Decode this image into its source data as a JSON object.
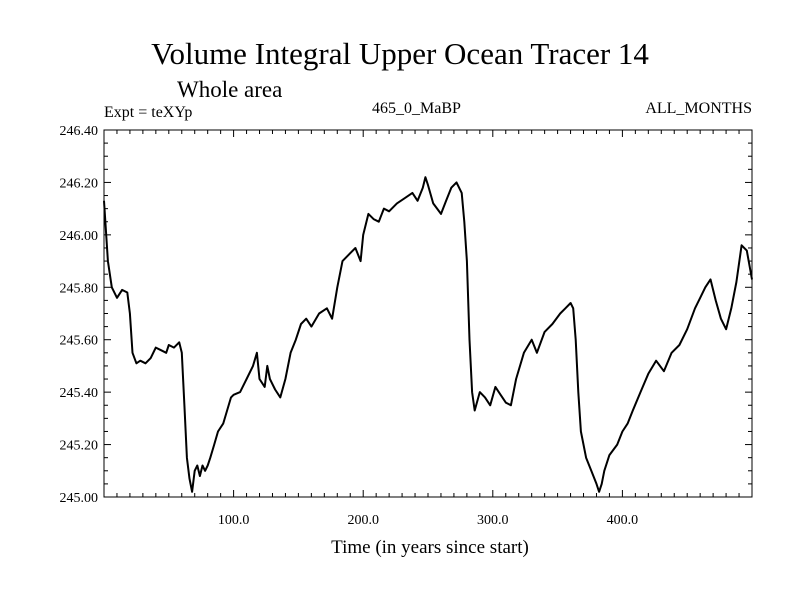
{
  "chart_data": {
    "type": "line",
    "title": "Volume Integral Upper Ocean Tracer 14",
    "subtitle": "Whole area",
    "annotations": {
      "expt": "Expt = teXYp",
      "run": "465_0_MaBP",
      "months": "ALL_MONTHS"
    },
    "xlabel": "Time (in years since start)",
    "ylabel": "",
    "xlim": [
      0,
      500
    ],
    "ylim": [
      245.0,
      246.4
    ],
    "x_ticks": [
      100,
      200,
      300,
      400
    ],
    "x_tick_labels": [
      "100.0",
      "200.0",
      "300.0",
      "400.0"
    ],
    "y_ticks": [
      245.0,
      245.2,
      245.4,
      245.6,
      245.8,
      246.0,
      246.2,
      246.4
    ],
    "y_tick_labels": [
      "245.00",
      "245.20",
      "245.40",
      "245.60",
      "245.80",
      "246.00",
      "246.20",
      "246.40"
    ],
    "grid": false,
    "series": [
      {
        "x": [
          0,
          3,
          6,
          10,
          14,
          18,
          20,
          22,
          25,
          28,
          32,
          36,
          40,
          44,
          48,
          50,
          54,
          58,
          60,
          62,
          64,
          66,
          68,
          70,
          72,
          74,
          76,
          78,
          80,
          82,
          85,
          88,
          92,
          95,
          98,
          100,
          105,
          110,
          115,
          118,
          120,
          124,
          126,
          128,
          132,
          136,
          140,
          144,
          148,
          152,
          156,
          160,
          166,
          172,
          176,
          180,
          184,
          190,
          194,
          198,
          200,
          204,
          208,
          212,
          216,
          220,
          226,
          232,
          238,
          242,
          246,
          248,
          250,
          254,
          260,
          264,
          268,
          272,
          276,
          278,
          280,
          282,
          284,
          286,
          290,
          294,
          298,
          302,
          306,
          310,
          314,
          318,
          324,
          330,
          334,
          340,
          346,
          352,
          356,
          360,
          362,
          364,
          366,
          368,
          372,
          376,
          380,
          382,
          384,
          386,
          390,
          396,
          400,
          404,
          408,
          414,
          420,
          426,
          432,
          438,
          444,
          450,
          456,
          460,
          464,
          468,
          472,
          476,
          480,
          484,
          488,
          492,
          496,
          500
        ],
        "values": [
          246.13,
          245.9,
          245.8,
          245.76,
          245.79,
          245.78,
          245.7,
          245.55,
          245.51,
          245.52,
          245.51,
          245.53,
          245.57,
          245.56,
          245.55,
          245.58,
          245.57,
          245.59,
          245.55,
          245.35,
          245.15,
          245.07,
          245.02,
          245.1,
          245.12,
          245.08,
          245.12,
          245.1,
          245.12,
          245.15,
          245.2,
          245.25,
          245.28,
          245.33,
          245.38,
          245.39,
          245.4,
          245.45,
          245.5,
          245.55,
          245.45,
          245.42,
          245.5,
          245.45,
          245.41,
          245.38,
          245.45,
          245.55,
          245.6,
          245.66,
          245.68,
          245.65,
          245.7,
          245.72,
          245.68,
          245.8,
          245.9,
          245.93,
          245.95,
          245.9,
          246.0,
          246.08,
          246.06,
          246.05,
          246.1,
          246.09,
          246.12,
          246.14,
          246.16,
          246.13,
          246.18,
          246.22,
          246.19,
          246.12,
          246.08,
          246.13,
          246.18,
          246.2,
          246.16,
          246.05,
          245.9,
          245.6,
          245.4,
          245.33,
          245.4,
          245.38,
          245.35,
          245.42,
          245.39,
          245.36,
          245.35,
          245.45,
          245.55,
          245.6,
          245.55,
          245.63,
          245.66,
          245.7,
          245.72,
          245.74,
          245.72,
          245.6,
          245.4,
          245.25,
          245.15,
          245.1,
          245.05,
          245.02,
          245.05,
          245.1,
          245.16,
          245.2,
          245.25,
          245.28,
          245.33,
          245.4,
          245.47,
          245.52,
          245.48,
          245.55,
          245.58,
          245.64,
          245.72,
          245.76,
          245.8,
          245.83,
          245.75,
          245.68,
          245.64,
          245.72,
          245.82,
          245.96,
          245.94,
          245.83
        ]
      }
    ]
  }
}
